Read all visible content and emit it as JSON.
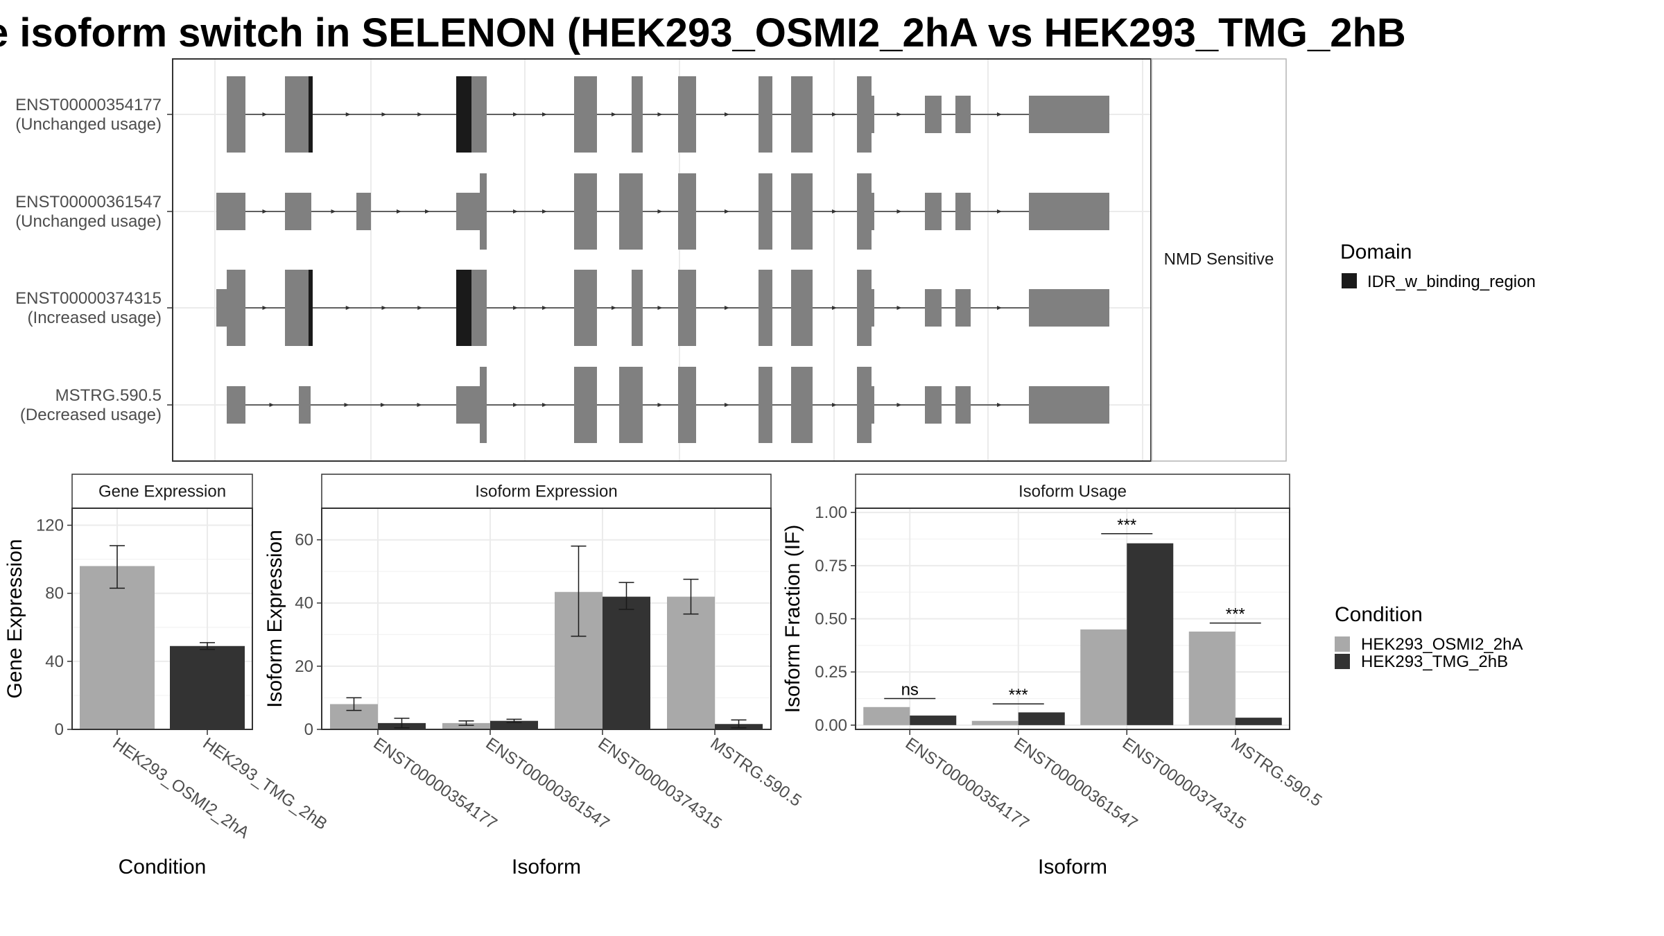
{
  "title": "e isoform switch in SELENON (HEK293_OSMI2_2hA vs HEK293_TMG_2hB",
  "colors": {
    "exon": "#808080",
    "domain": "#1a1a1a",
    "condition_a": "#a9a9a9",
    "condition_b": "#333333",
    "grid": "#ebebeb",
    "panel_border": "#333333",
    "strip_border": "#b3b3b3"
  },
  "isoform_structure": {
    "strip_label": "NMD Sensitive",
    "tracks": [
      {
        "id": "ENST00000354177",
        "status": "(Unchanged usage)"
      },
      {
        "id": "ENST00000361547",
        "status": "(Unchanged usage)"
      },
      {
        "id": "ENST00000374315",
        "status": "(Increased usage)"
      },
      {
        "id": "MSTRG.590.5",
        "status": "(Decreased usage)"
      }
    ]
  },
  "legends": {
    "domain": {
      "title": "Domain",
      "items": [
        {
          "label": "IDR_w_binding_region",
          "color": "#1a1a1a"
        }
      ]
    },
    "condition": {
      "title": "Condition",
      "items": [
        {
          "label": "HEK293_OSMI2_2hA",
          "color": "#a9a9a9"
        },
        {
          "label": "HEK293_TMG_2hB",
          "color": "#333333"
        }
      ]
    }
  },
  "chart_data": [
    {
      "panel": "Gene Expression",
      "type": "bar",
      "xlabel": "Condition",
      "ylabel": "Gene Expression",
      "ylim": [
        0,
        130
      ],
      "yticks": [
        0,
        40,
        80,
        120
      ],
      "categories": [
        "HEK293_OSMI2_2hA",
        "HEK293_TMG_2hB"
      ],
      "values": [
        96,
        49
      ],
      "error_bars": [
        [
          83,
          108
        ],
        [
          47,
          51
        ]
      ]
    },
    {
      "panel": "Isoform Expression",
      "type": "bar",
      "xlabel": "Isoform",
      "ylabel": "Isoform Expression",
      "ylim": [
        0,
        70
      ],
      "yticks": [
        0,
        20,
        40,
        60
      ],
      "categories": [
        "ENST00000354177",
        "ENST00000361547",
        "ENST00000374315",
        "MSTRG.590.5"
      ],
      "series": [
        {
          "name": "HEK293_OSMI2_2hA",
          "values": [
            8,
            2,
            43.5,
            42
          ],
          "error_bars": [
            [
              6,
              10
            ],
            [
              1.3,
              2.7
            ],
            [
              29.5,
              58
            ],
            [
              36.5,
              47.5
            ]
          ]
        },
        {
          "name": "HEK293_TMG_2hB",
          "values": [
            2,
            2.7,
            42,
            1.7
          ],
          "error_bars": [
            [
              0.5,
              3.5
            ],
            [
              2.2,
              3.2
            ],
            [
              38,
              46.5
            ],
            [
              0.5,
              3
            ]
          ]
        }
      ]
    },
    {
      "panel": "Isoform Usage",
      "type": "bar",
      "xlabel": "Isoform",
      "ylabel": "Isoform Fraction (IF)",
      "ylim": [
        -0.02,
        1.02
      ],
      "yticks": [
        "0.00",
        "0.25",
        "0.50",
        "0.75",
        "1.00"
      ],
      "categories": [
        "ENST00000354177",
        "ENST00000361547",
        "ENST00000374315",
        "MSTRG.590.5"
      ],
      "series": [
        {
          "name": "HEK293_OSMI2_2hA",
          "values": [
            0.085,
            0.02,
            0.45,
            0.44
          ]
        },
        {
          "name": "HEK293_TMG_2hB",
          "values": [
            0.045,
            0.06,
            0.855,
            0.035
          ]
        }
      ],
      "significance": [
        {
          "label": "ns",
          "y": 0.125
        },
        {
          "label": "***",
          "y": 0.1
        },
        {
          "label": "***",
          "y": 0.9
        },
        {
          "label": "***",
          "y": 0.48
        }
      ]
    }
  ]
}
